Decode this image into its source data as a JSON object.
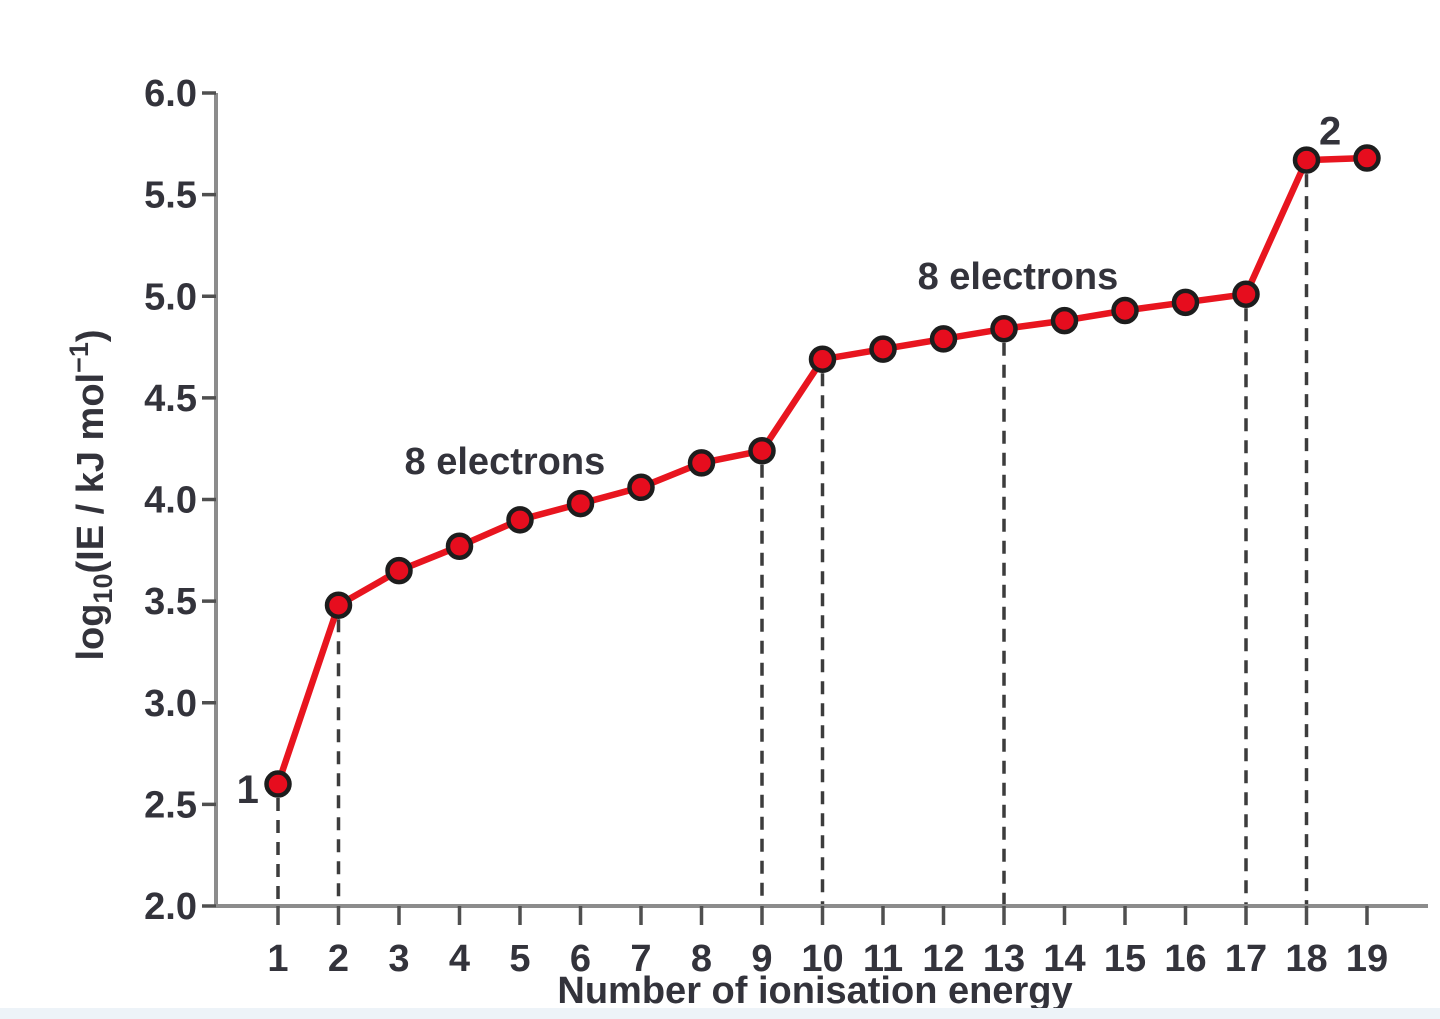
{
  "figure": {
    "background": "#ffffff",
    "bottom_strip_color": "#edf3f8"
  },
  "chart_data": {
    "type": "line",
    "title": "",
    "xlabel": "Number of ionisation energy",
    "ylabel": "log10(IE / kJ mol-1)",
    "ylabel_parts": [
      {
        "text": "log"
      },
      {
        "text": "10",
        "script": "sub"
      },
      {
        "text": "(IE / kJ mol",
        "script": "none"
      },
      {
        "text": "−1",
        "script": "sup"
      },
      {
        "text": ")",
        "script": "none"
      }
    ],
    "x": [
      1,
      2,
      3,
      4,
      5,
      6,
      7,
      8,
      9,
      10,
      11,
      12,
      13,
      14,
      15,
      16,
      17,
      18,
      19
    ],
    "y": [
      2.6,
      3.48,
      3.65,
      3.77,
      3.9,
      3.98,
      4.06,
      4.18,
      4.24,
      4.69,
      4.74,
      4.79,
      4.84,
      4.88,
      4.93,
      4.97,
      5.01,
      5.67,
      5.68
    ],
    "xticks": [
      1,
      2,
      3,
      4,
      5,
      6,
      7,
      8,
      9,
      10,
      11,
      12,
      13,
      14,
      15,
      16,
      17,
      18,
      19
    ],
    "ytick_labels": [
      "2.0",
      "2.5",
      "3.0",
      "3.5",
      "4.0",
      "4.5",
      "5.0",
      "5.5",
      "6.0"
    ],
    "ylim": [
      2.0,
      6.0
    ],
    "grid": false,
    "legend": null,
    "drop_lines_x": [
      1,
      2,
      9,
      10,
      13,
      17,
      18
    ],
    "annotations": [
      {
        "id": "shell1-electrons-label",
        "text": "8 electrons",
        "x": 4.75,
        "y": 4.19,
        "anchor": "middle",
        "cls": "annotation"
      },
      {
        "id": "shell2-electrons-label",
        "text": "8 electrons",
        "x": 13.23,
        "y": 5.1,
        "anchor": "middle",
        "cls": "annotation"
      },
      {
        "id": "first-point-count-label",
        "text": "1",
        "x": 0.5,
        "y": 2.57,
        "anchor": "middle",
        "cls": "point-label"
      },
      {
        "id": "last-shell-count-label",
        "text": "2",
        "x": 18.39,
        "y": 5.81,
        "anchor": "middle",
        "cls": "point-label"
      }
    ],
    "colors": {
      "line": "#e8151f",
      "marker_fill": "#e60d1e",
      "marker_stroke": "#1d1d1d",
      "axis": "#8c8c8c",
      "tick": "#4f4f4f",
      "text": "#33333b",
      "drop_line": "#3c3c3c"
    }
  }
}
